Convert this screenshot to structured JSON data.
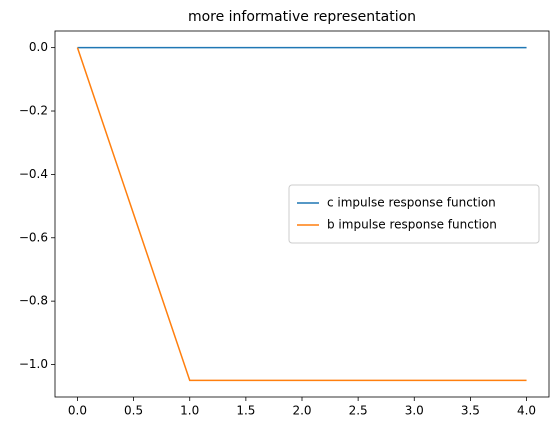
{
  "chart_data": {
    "type": "line",
    "title": "more informative representation",
    "x": [
      0,
      1,
      2,
      3,
      4
    ],
    "series": [
      {
        "name": "c impulse response function",
        "color": "#1f77b4",
        "values": [
          0,
          0,
          0,
          0,
          0
        ]
      },
      {
        "name": "b impulse response function",
        "color": "#ff7f0e",
        "values": [
          0,
          -1.05,
          -1.05,
          -1.05,
          -1.05
        ]
      }
    ],
    "xlim": [
      -0.2,
      4.2
    ],
    "ylim": [
      -1.1025,
      0.0525
    ],
    "xticks": [
      {
        "value": 0,
        "label": "0.0"
      },
      {
        "value": 0.5,
        "label": "0.5"
      },
      {
        "value": 1,
        "label": "1.0"
      },
      {
        "value": 1.5,
        "label": "1.5"
      },
      {
        "value": 2,
        "label": "2.0"
      },
      {
        "value": 2.5,
        "label": "2.5"
      },
      {
        "value": 3,
        "label": "3.0"
      },
      {
        "value": 3.5,
        "label": "3.5"
      },
      {
        "value": 4,
        "label": "4.0"
      }
    ],
    "yticks": [
      {
        "value": 0,
        "label": "0.0"
      },
      {
        "value": -0.2,
        "label": "−0.2"
      },
      {
        "value": -0.4,
        "label": "−0.4"
      },
      {
        "value": -0.6,
        "label": "−0.6"
      },
      {
        "value": -0.8,
        "label": "−0.8"
      },
      {
        "value": -1,
        "label": "−1.0"
      }
    ],
    "legend": "center right",
    "grid": false
  }
}
